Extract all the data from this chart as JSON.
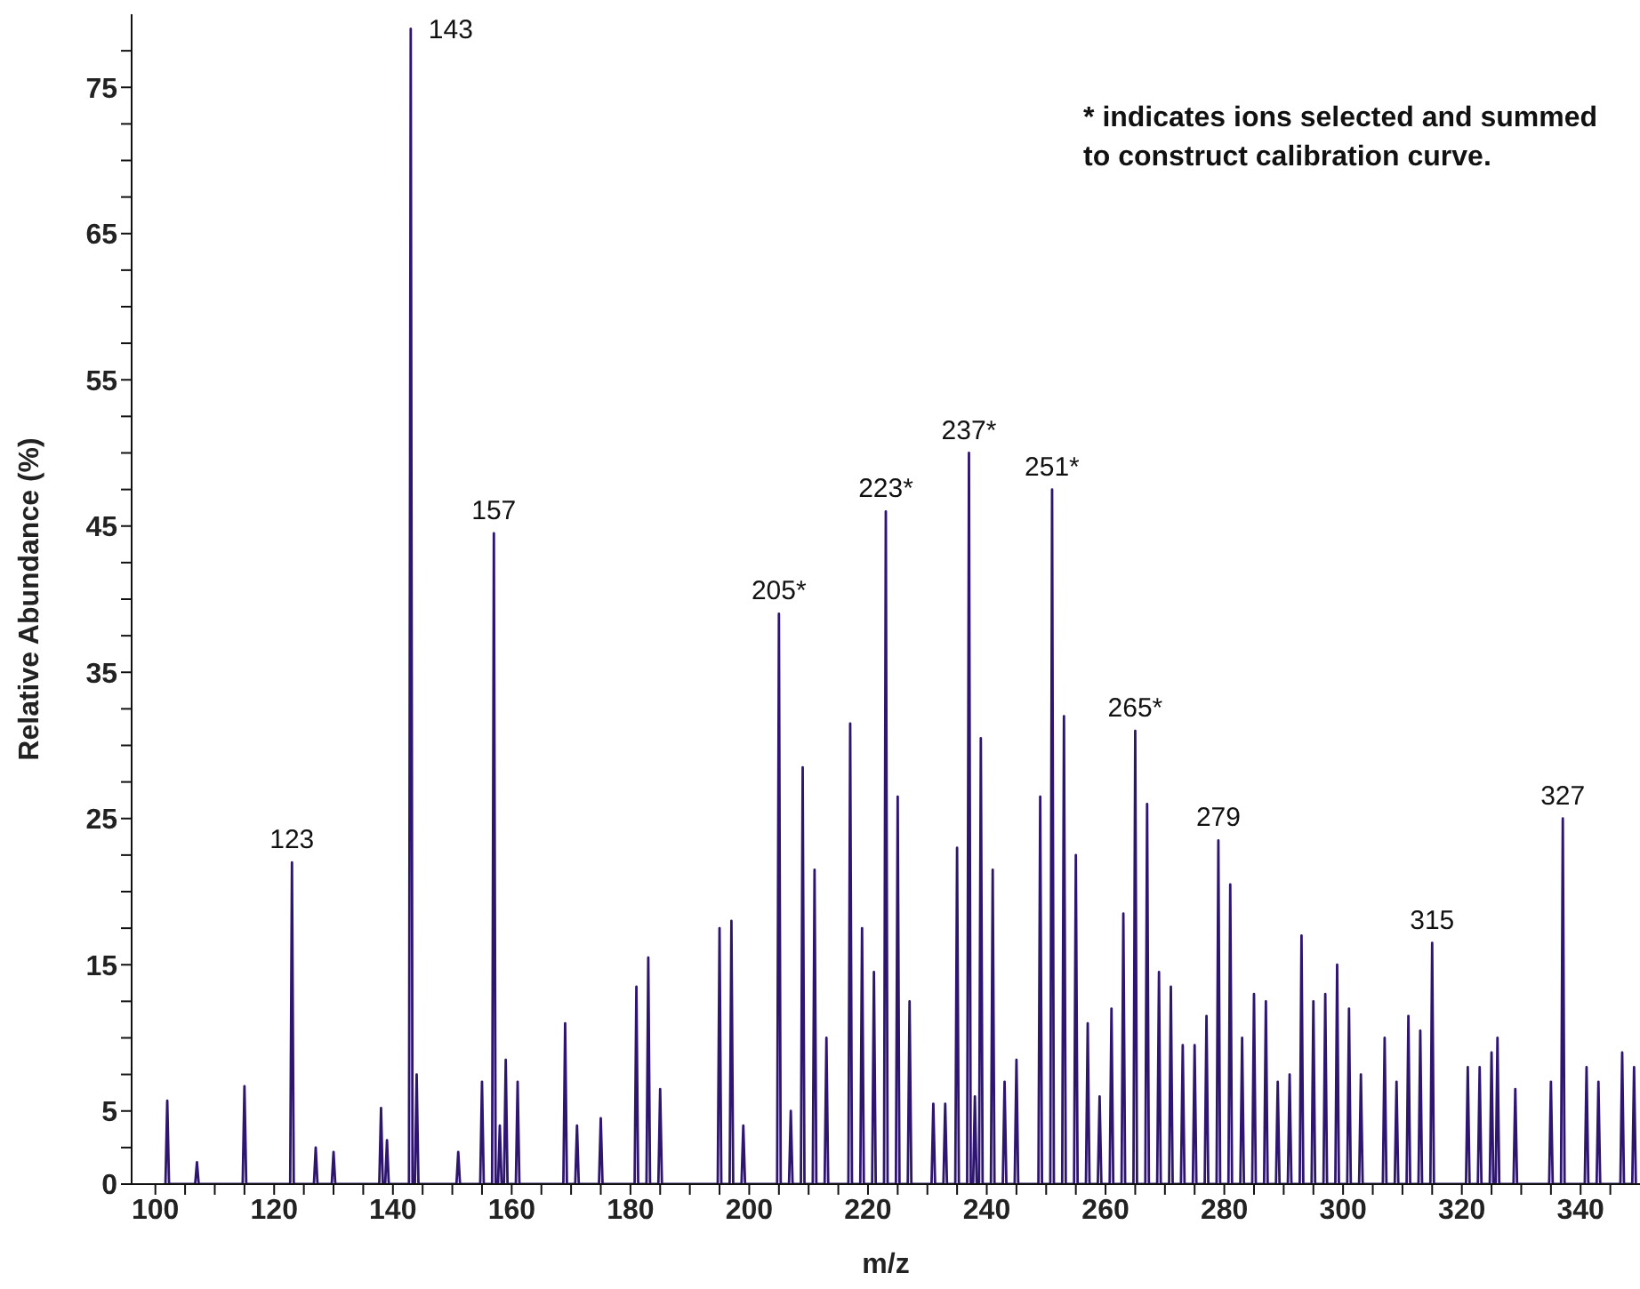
{
  "chart_data": {
    "type": "line",
    "xlabel": "m/z",
    "ylabel": "Relative Abundance (%)",
    "color": "#2e1670",
    "marker": "none",
    "xlim": [
      96,
      350
    ],
    "ylim": [
      0,
      80
    ],
    "xticks": [
      100,
      {
        "value": 105,
        "label": null
      },
      {
        "value": 110,
        "label": null
      },
      {
        "value": 115,
        "label": null
      },
      120,
      {
        "value": 125,
        "label": null
      },
      {
        "value": 130,
        "label": null
      },
      {
        "value": 135,
        "label": null
      },
      140,
      {
        "value": 145,
        "label": null
      },
      {
        "value": 150,
        "label": null
      },
      {
        "value": 155,
        "label": null
      },
      160,
      {
        "value": 165,
        "label": null
      },
      {
        "value": 170,
        "label": null
      },
      {
        "value": 175,
        "label": null
      },
      180,
      {
        "value": 185,
        "label": null
      },
      {
        "value": 190,
        "label": null
      },
      {
        "value": 195,
        "label": null
      },
      200,
      {
        "value": 205,
        "label": null
      },
      {
        "value": 210,
        "label": null
      },
      {
        "value": 215,
        "label": null
      },
      220,
      {
        "value": 225,
        "label": null
      },
      {
        "value": 230,
        "label": null
      },
      {
        "value": 235,
        "label": null
      },
      240,
      {
        "value": 245,
        "label": null
      },
      {
        "value": 250,
        "label": null
      },
      {
        "value": 255,
        "label": null
      },
      260,
      {
        "value": 265,
        "label": null
      },
      {
        "value": 270,
        "label": null
      },
      {
        "value": 275,
        "label": null
      },
      280,
      {
        "value": 285,
        "label": null
      },
      {
        "value": 290,
        "label": null
      },
      {
        "value": 295,
        "label": null
      },
      300,
      {
        "value": 305,
        "label": null
      },
      {
        "value": 310,
        "label": null
      },
      {
        "value": 315,
        "label": null
      },
      320,
      {
        "value": 325,
        "label": null
      },
      {
        "value": 330,
        "label": null
      },
      {
        "value": 335,
        "label": null
      },
      340,
      {
        "value": 345,
        "label": null
      }
    ],
    "yticks": [
      0,
      {
        "value": 2.5,
        "label": null
      },
      5,
      {
        "value": 7.5,
        "label": null
      },
      {
        "value": 10,
        "label": null
      },
      {
        "value": 12.5,
        "label": null
      },
      15,
      {
        "value": 17.5,
        "label": null
      },
      {
        "value": 20,
        "label": null
      },
      {
        "value": 22.5,
        "label": null
      },
      25,
      {
        "value": 27.5,
        "label": null
      },
      {
        "value": 30,
        "label": null
      },
      {
        "value": 32.5,
        "label": null
      },
      35,
      {
        "value": 37.5,
        "label": null
      },
      {
        "value": 40,
        "label": null
      },
      {
        "value": 42.5,
        "label": null
      },
      45,
      {
        "value": 47.5,
        "label": null
      },
      {
        "value": 50,
        "label": null
      },
      {
        "value": 52.5,
        "label": null
      },
      55,
      {
        "value": 57.5,
        "label": null
      },
      {
        "value": 60,
        "label": null
      },
      {
        "value": 62.5,
        "label": null
      },
      65,
      {
        "value": 67.5,
        "label": null
      },
      {
        "value": 70,
        "label": null
      },
      {
        "value": 72.5,
        "label": null
      },
      75,
      {
        "value": 77.5,
        "label": null
      }
    ],
    "x": [
      101.7,
      102,
      102.3,
      106.7,
      107,
      107.3,
      114.7,
      115,
      115.3,
      122.7,
      123,
      123.3,
      126.7,
      127,
      127.3,
      129.7,
      130,
      130.3,
      137.7,
      138,
      138.3,
      138.7,
      139,
      139.3,
      142.7,
      143,
      143.3,
      143.7,
      144,
      144.3,
      150.7,
      151,
      151.3,
      154.7,
      155,
      155.3,
      156.7,
      157,
      157.3,
      157.7,
      158,
      158.3,
      158.7,
      159,
      159.3,
      160.7,
      161,
      161.3,
      168.7,
      169,
      169.3,
      170.7,
      171,
      171.3,
      174.7,
      175,
      175.3,
      180.7,
      181,
      181.3,
      182.7,
      183,
      183.3,
      184.7,
      185,
      185.3,
      194.7,
      195,
      195.3,
      196.7,
      197,
      197.3,
      198.7,
      199,
      199.3,
      204.7,
      205,
      205.3,
      206.7,
      207,
      207.3,
      208.7,
      209,
      209.3,
      210.7,
      211,
      211.3,
      212.7,
      213,
      213.3,
      216.7,
      217,
      217.3,
      218.7,
      219,
      219.3,
      220.7,
      221,
      221.3,
      222.7,
      223,
      223.3,
      224.7,
      225,
      225.3,
      226.7,
      227,
      227.3,
      230.7,
      231,
      231.3,
      232.7,
      233,
      233.3,
      234.7,
      235,
      235.3,
      236.7,
      237,
      237.3,
      237.7,
      238,
      238.3,
      238.7,
      239,
      239.3,
      240.7,
      241,
      241.3,
      242.7,
      243,
      243.3,
      244.7,
      245,
      245.3,
      248.7,
      249,
      249.3,
      250.7,
      251,
      251.3,
      252.7,
      253,
      253.3,
      254.7,
      255,
      255.3,
      256.7,
      257,
      257.3,
      258.7,
      259,
      259.3,
      260.7,
      261,
      261.3,
      262.7,
      263,
      263.3,
      264.7,
      265,
      265.3,
      266.7,
      267,
      267.3,
      268.7,
      269,
      269.3,
      270.7,
      271,
      271.3,
      272.7,
      273,
      273.3,
      274.7,
      275,
      275.3,
      276.7,
      277,
      277.3,
      278.7,
      279,
      279.3,
      280.7,
      281,
      281.3,
      282.7,
      283,
      283.3,
      284.7,
      285,
      285.3,
      286.7,
      287,
      287.3,
      288.7,
      289,
      289.3,
      290.7,
      291,
      291.3,
      292.7,
      293,
      293.3,
      294.7,
      295,
      295.3,
      296.7,
      297,
      297.3,
      298.7,
      299,
      299.3,
      300.7,
      301,
      301.3,
      302.7,
      303,
      303.3,
      306.7,
      307,
      307.3,
      308.7,
      309,
      309.3,
      310.7,
      311,
      311.3,
      312.7,
      313,
      313.3,
      314.7,
      315,
      315.3,
      320.7,
      321,
      321.3,
      322.7,
      323,
      323.3,
      324.7,
      325,
      325.3,
      325.7,
      326,
      326.3,
      328.7,
      329,
      329.3,
      334.7,
      335,
      335.3,
      336.7,
      337,
      337.3,
      340.7,
      341,
      341.3,
      342.7,
      343,
      343.3,
      346.7,
      347,
      347.3,
      348.7,
      349,
      349.3
    ],
    "values": [
      0,
      5.7,
      0,
      0,
      1.5,
      0,
      0,
      6.7,
      0,
      0,
      22,
      0,
      0,
      2.5,
      0,
      0,
      2.2,
      0,
      0,
      5.2,
      0,
      0,
      3,
      0,
      0,
      79,
      0,
      0,
      7.5,
      0,
      0,
      2.2,
      0,
      0,
      7,
      0,
      0,
      44.5,
      0,
      0,
      4,
      0,
      0,
      8.5,
      0,
      0,
      7,
      0,
      0,
      11,
      0,
      0,
      4,
      0,
      0,
      4.5,
      0,
      0,
      13.5,
      0,
      0,
      15.5,
      0,
      0,
      6.5,
      0,
      0,
      17.5,
      0,
      0,
      18,
      0,
      0,
      4,
      0,
      0,
      39,
      0,
      0,
      5,
      0,
      0,
      28.5,
      0,
      0,
      21.5,
      0,
      0,
      10,
      0,
      0,
      31.5,
      0,
      0,
      17.5,
      0,
      0,
      14.5,
      0,
      0,
      46,
      0,
      0,
      26.5,
      0,
      0,
      12.5,
      0,
      0,
      5.5,
      0,
      0,
      5.5,
      0,
      0,
      23,
      0,
      0,
      50,
      0,
      0,
      6,
      0,
      0,
      30.5,
      0,
      0,
      21.5,
      0,
      0,
      7,
      0,
      0,
      8.5,
      0,
      0,
      26.5,
      0,
      0,
      47.5,
      0,
      0,
      32,
      0,
      0,
      22.5,
      0,
      0,
      11,
      0,
      0,
      6,
      0,
      0,
      12,
      0,
      0,
      18.5,
      0,
      0,
      31,
      0,
      0,
      26,
      0,
      0,
      14.5,
      0,
      0,
      13.5,
      0,
      0,
      9.5,
      0,
      0,
      9.5,
      0,
      0,
      11.5,
      0,
      0,
      23.5,
      0,
      0,
      20.5,
      0,
      0,
      10,
      0,
      0,
      13,
      0,
      0,
      12.5,
      0,
      0,
      7,
      0,
      0,
      7.5,
      0,
      0,
      17,
      0,
      0,
      12.5,
      0,
      0,
      13,
      0,
      0,
      15,
      0,
      0,
      12,
      0,
      0,
      7.5,
      0,
      0,
      10,
      0,
      0,
      7,
      0,
      0,
      11.5,
      0,
      0,
      10.5,
      0,
      0,
      16.5,
      0,
      0,
      8,
      0,
      0,
      8,
      0,
      0,
      9,
      0,
      0,
      10,
      0,
      0,
      6.5,
      0,
      0,
      7,
      0,
      0,
      25,
      0,
      0,
      8,
      0,
      0,
      7,
      0,
      0,
      9,
      0,
      0,
      8,
      0
    ],
    "annotations": [
      "* indicates ions selected and summed\n to construct calibration curve.",
      {
        "text": "123",
        "x": 123,
        "y": 22
      },
      {
        "text": "143",
        "x": 143,
        "y": 79
      },
      {
        "text": "157",
        "x": 157,
        "y": 44.5
      },
      {
        "text": "205*",
        "x": 205,
        "y": 39
      },
      {
        "text": "223*",
        "x": 223,
        "y": 46
      },
      {
        "text": "237*",
        "x": 237,
        "y": 50
      },
      {
        "text": "251*",
        "x": 251,
        "y": 47.5
      },
      {
        "text": "265*",
        "x": 265,
        "y": 31
      },
      {
        "text": "279",
        "x": 279,
        "y": 23.5
      },
      {
        "text": "315",
        "x": 315,
        "y": 16.5
      },
      {
        "text": "327",
        "x": 337,
        "y": 25
      }
    ]
  }
}
